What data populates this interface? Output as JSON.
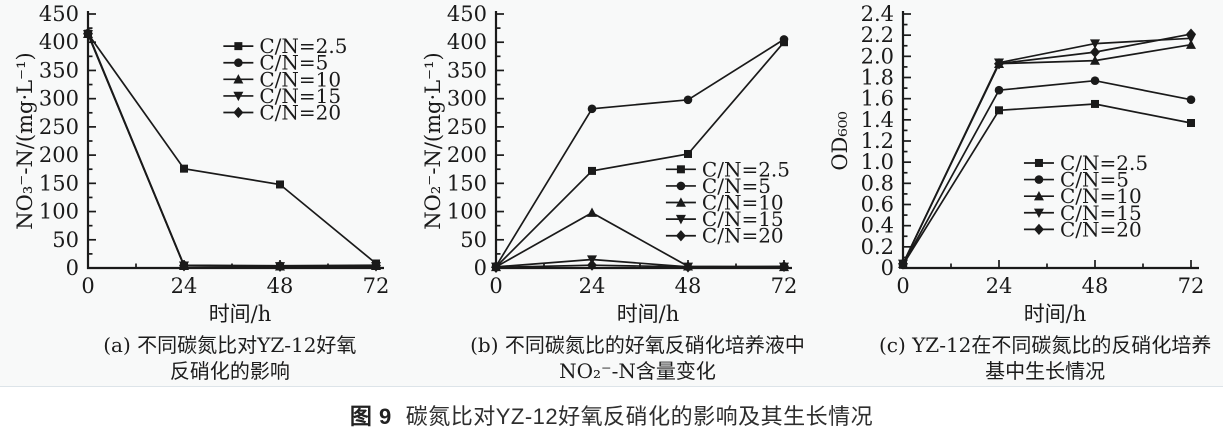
{
  "figure": {
    "caption_label": "图 9",
    "caption_text": "碳氮比对YZ-12好氧反硝化的影响及其生长情况"
  },
  "panels": [
    {
      "caption_line1": "(a) 不同碳氮比对YZ-12好氧",
      "caption_line2": "反硝化的影响"
    },
    {
      "caption_line1": "(b) 不同碳氮比的好氧反硝化培养液中",
      "caption_line2": "NO₂⁻-N含量变化"
    },
    {
      "caption_line1": "(c) YZ-12在不同碳氮比的反硝化培养",
      "caption_line2": "基中生长情况"
    }
  ],
  "colors": {
    "line": "#1a1a1a",
    "text": "#1a1a1a",
    "panel_bg": "#f8f9f9",
    "divider": "#dde4e9"
  },
  "chart_data": [
    {
      "type": "line",
      "title": "",
      "xlabel": "时间/h",
      "ylabel": "NO₃⁻-N/(mg·L⁻¹)",
      "x": [
        0,
        24,
        48,
        72
      ],
      "xticks": [
        0,
        24,
        48,
        72
      ],
      "xminor": [
        12,
        36,
        60
      ],
      "xlim": [
        0,
        72
      ],
      "ylim": [
        0,
        450
      ],
      "ytick_step": 50,
      "yminor_step": 25,
      "ytick_decimals": 0,
      "grid": false,
      "legend_position": "upper-right-inside",
      "legend": {
        "fx": 0.47,
        "fy": 0.095
      },
      "series": [
        {
          "name": "C/N=2.5",
          "marker": "square",
          "values": [
            415,
            176,
            148,
            8
          ]
        },
        {
          "name": "C/N=5",
          "marker": "circle",
          "values": [
            416,
            5,
            4,
            5
          ]
        },
        {
          "name": "C/N=10",
          "marker": "triangle-up",
          "values": [
            415,
            4,
            3,
            4
          ]
        },
        {
          "name": "C/N=15",
          "marker": "triangle-down",
          "values": [
            414,
            4,
            3,
            3
          ]
        },
        {
          "name": "C/N=20",
          "marker": "diamond",
          "values": [
            415,
            4,
            3,
            4
          ]
        }
      ]
    },
    {
      "type": "line",
      "title": "",
      "xlabel": "时间/h",
      "ylabel": "NO₂⁻-N/(mg·L⁻¹)",
      "x": [
        0,
        24,
        48,
        72
      ],
      "xticks": [
        0,
        24,
        48,
        72
      ],
      "xminor": [
        12,
        36,
        60
      ],
      "xlim": [
        0,
        72
      ],
      "ylim": [
        0,
        450
      ],
      "ytick_step": 50,
      "yminor_step": 25,
      "ytick_decimals": 0,
      "grid": false,
      "legend_position": "middle-right-inside",
      "legend": {
        "fx": 0.59,
        "fy": 0.58
      },
      "series": [
        {
          "name": "C/N=2.5",
          "marker": "square",
          "values": [
            2,
            172,
            202,
            400
          ]
        },
        {
          "name": "C/N=5",
          "marker": "circle",
          "values": [
            3,
            282,
            298,
            405
          ]
        },
        {
          "name": "C/N=10",
          "marker": "triangle-up",
          "values": [
            2,
            98,
            3,
            2
          ]
        },
        {
          "name": "C/N=15",
          "marker": "triangle-down",
          "values": [
            2,
            15,
            2,
            2
          ]
        },
        {
          "name": "C/N=20",
          "marker": "diamond",
          "values": [
            1,
            5,
            2,
            3
          ]
        }
      ]
    },
    {
      "type": "line",
      "title": "",
      "xlabel": "时间/h",
      "ylabel": "OD₆₀₀",
      "x": [
        0,
        24,
        48,
        72
      ],
      "xticks": [
        0,
        24,
        48,
        72
      ],
      "xminor": [
        12,
        36,
        60
      ],
      "xlim": [
        0,
        72
      ],
      "ylim": [
        0,
        2.4
      ],
      "ytick_step": 0.2,
      "yminor_step": 0.1,
      "ytick_decimals": 1,
      "grid": false,
      "legend_position": "middle-right-inside",
      "legend": {
        "fx": 0.42,
        "fy": 0.555
      },
      "series": [
        {
          "name": "C/N=2.5",
          "marker": "square",
          "values": [
            0.03,
            1.49,
            1.55,
            1.37
          ]
        },
        {
          "name": "C/N=5",
          "marker": "circle",
          "values": [
            0.03,
            1.68,
            1.77,
            1.59
          ]
        },
        {
          "name": "C/N=10",
          "marker": "triangle-up",
          "values": [
            0.04,
            1.93,
            1.96,
            2.11
          ]
        },
        {
          "name": "C/N=15",
          "marker": "triangle-down",
          "values": [
            0.04,
            1.94,
            2.12,
            2.17
          ]
        },
        {
          "name": "C/N=20",
          "marker": "diamond",
          "values": [
            0.04,
            1.93,
            2.04,
            2.21
          ]
        }
      ]
    }
  ]
}
